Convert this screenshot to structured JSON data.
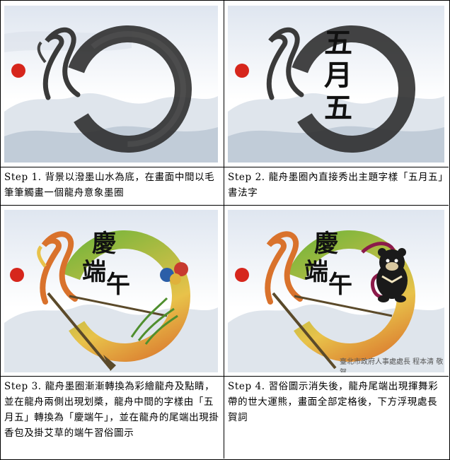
{
  "panels": [
    {
      "caption": "Step 1. 背景以潑墨山水為底，在畫面中間以毛筆筆觸畫一個龍舟意象墨圈"
    },
    {
      "caption": "Step 2. 龍舟墨圈內直接秀出主題字樣「五月五」書法字",
      "title_chars": [
        "五",
        "月",
        "五"
      ]
    },
    {
      "caption": "Step 3. 龍舟墨圈漸漸轉換為彩繪龍舟及點睛，並在龍舟兩側出現划槳，龍舟中間的字樣由「五月五」轉換為「慶端午」，並在龍舟的尾端出現掛香包及掛艾草的端午習俗圖示",
      "title_chars": [
        "慶",
        "端",
        "午"
      ]
    },
    {
      "caption": "Step 4. 習俗圖示消失後，龍舟尾端出現揮舞彩帶的世大運熊，畫面全部定格後，下方浮現處長賀詞",
      "title_chars": [
        "慶",
        "端",
        "午"
      ],
      "signature": "臺北市政府人事處處長 程本清 敬賀"
    }
  ],
  "colors": {
    "ink": "#2a2a2a",
    "seal_red": "#d6261c",
    "dragon_green": "#6fb43a",
    "dragon_yellow": "#e8c24a",
    "dragon_orange": "#d9722c",
    "mountain": "#c9d3e0"
  }
}
